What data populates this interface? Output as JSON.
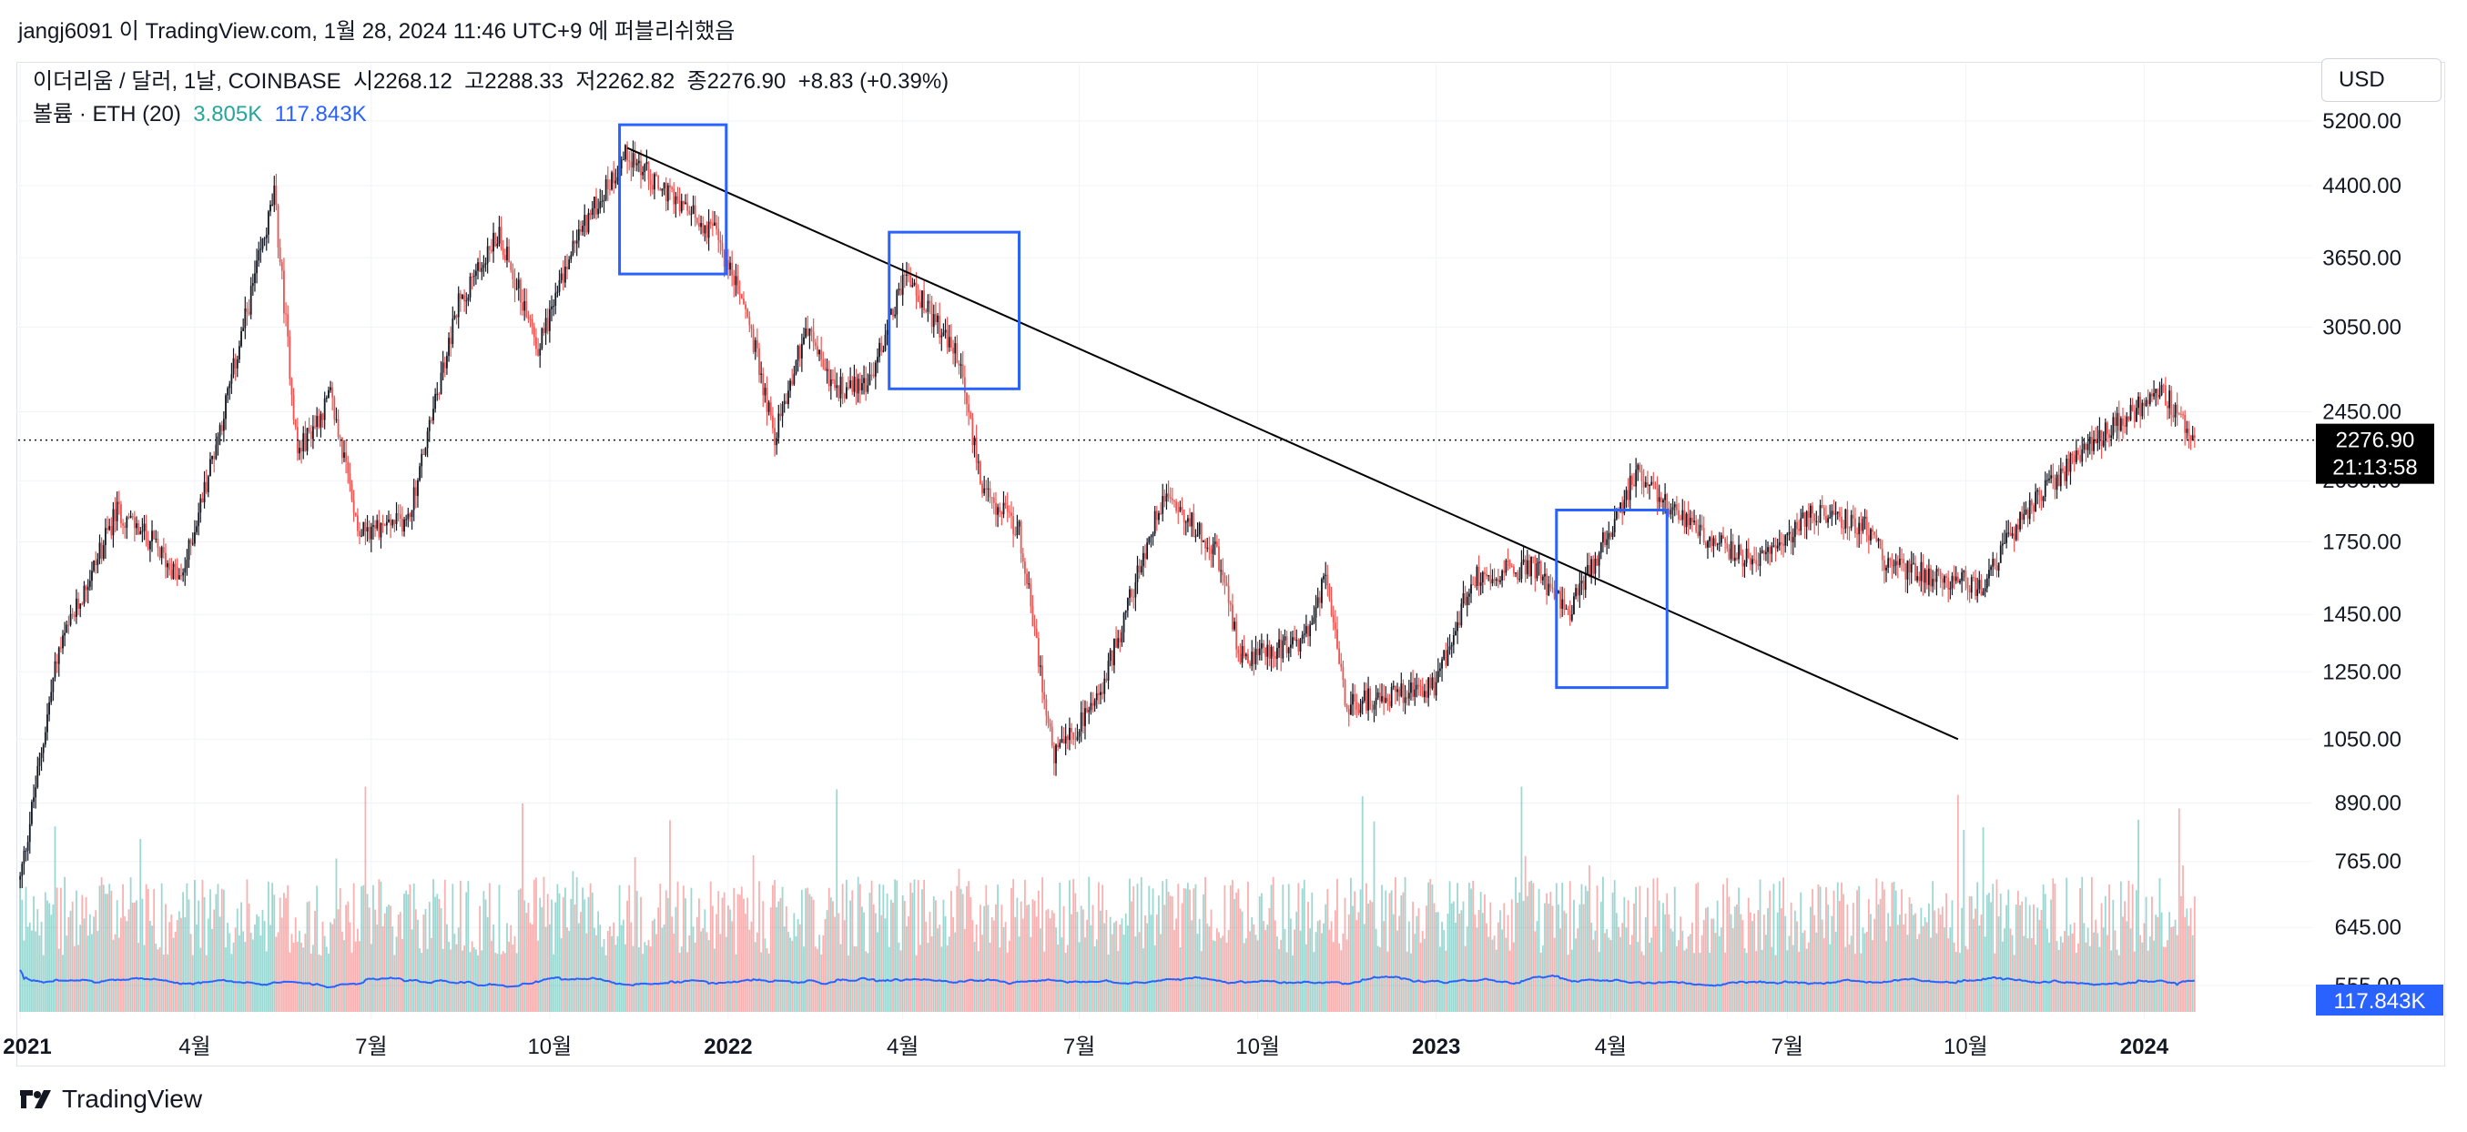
{
  "header": {
    "text": "jangj6091 이 TradingView.com, 1월 28, 2024 11:46 UTC+9 에 퍼블리쉬했음"
  },
  "legend": {
    "symbol": "이더리움 / 달러, 1날, COINBASE",
    "open": "시2268.12",
    "high": "고2288.33",
    "low": "저2262.82",
    "close": "종2276.90",
    "change": "+8.83 (+0.39%)",
    "volume_label": "볼륨 · ETH (20)",
    "volume_value": "3.805K",
    "volume_ma": "117.843K"
  },
  "currency": "USD",
  "footer": {
    "brand": "TradingView"
  },
  "colors": {
    "up": "#26a69a",
    "down": "#ef5350",
    "candle_body": "#131722",
    "ma": "#2962ff",
    "box": "#2962ff",
    "grid": "#f0f3fa"
  },
  "chart_data": {
    "type": "candlestick",
    "symbol": "ETH/USD",
    "scale": "log",
    "y_ticks": [
      "5200.00",
      "4400.00",
      "3650.00",
      "3050.00",
      "2450.00",
      "2050.00",
      "1750.00",
      "1450.00",
      "1250.00",
      "1050.00",
      "890.00",
      "765.00",
      "645.00",
      "555.00"
    ],
    "x_ticks": [
      "2021",
      "4월",
      "7월",
      "10월",
      "2022",
      "4월",
      "7월",
      "10월",
      "2023",
      "4월",
      "7월",
      "10월",
      "2024"
    ],
    "last_price": "2276.90",
    "countdown": "21:13:58",
    "volume_ma_badge": "117.843K",
    "price_path": [
      {
        "d": "2021-01-01",
        "p": 730
      },
      {
        "d": "2021-01-20",
        "p": 1300
      },
      {
        "d": "2021-02-20",
        "p": 1900
      },
      {
        "d": "2021-03-10",
        "p": 1750
      },
      {
        "d": "2021-03-25",
        "p": 1580
      },
      {
        "d": "2021-04-15",
        "p": 2400
      },
      {
        "d": "2021-05-12",
        "p": 4300
      },
      {
        "d": "2021-05-24",
        "p": 2200
      },
      {
        "d": "2021-06-10",
        "p": 2550
      },
      {
        "d": "2021-06-25",
        "p": 1800
      },
      {
        "d": "2021-07-20",
        "p": 1850
      },
      {
        "d": "2021-08-15",
        "p": 3250
      },
      {
        "d": "2021-09-05",
        "p": 3900
      },
      {
        "d": "2021-09-25",
        "p": 2900
      },
      {
        "d": "2021-10-15",
        "p": 3850
      },
      {
        "d": "2021-11-10",
        "p": 4800
      },
      {
        "d": "2021-12-05",
        "p": 4200
      },
      {
        "d": "2021-12-25",
        "p": 3900
      },
      {
        "d": "2022-01-10",
        "p": 3200
      },
      {
        "d": "2022-01-25",
        "p": 2300
      },
      {
        "d": "2022-02-10",
        "p": 3050
      },
      {
        "d": "2022-02-25",
        "p": 2600
      },
      {
        "d": "2022-03-15",
        "p": 2650
      },
      {
        "d": "2022-04-02",
        "p": 3500
      },
      {
        "d": "2022-04-30",
        "p": 2800
      },
      {
        "d": "2022-05-12",
        "p": 2000
      },
      {
        "d": "2022-05-31",
        "p": 1800
      },
      {
        "d": "2022-06-18",
        "p": 1000
      },
      {
        "d": "2022-07-10",
        "p": 1150
      },
      {
        "d": "2022-08-14",
        "p": 2000
      },
      {
        "d": "2022-09-10",
        "p": 1700
      },
      {
        "d": "2022-09-22",
        "p": 1300
      },
      {
        "d": "2022-10-25",
        "p": 1350
      },
      {
        "d": "2022-11-05",
        "p": 1600
      },
      {
        "d": "2022-11-15",
        "p": 1150
      },
      {
        "d": "2022-12-31",
        "p": 1200
      },
      {
        "d": "2023-01-20",
        "p": 1600
      },
      {
        "d": "2023-02-20",
        "p": 1650
      },
      {
        "d": "2023-03-10",
        "p": 1450
      },
      {
        "d": "2023-04-15",
        "p": 2100
      },
      {
        "d": "2023-05-15",
        "p": 1800
      },
      {
        "d": "2023-06-15",
        "p": 1650
      },
      {
        "d": "2023-07-15",
        "p": 1900
      },
      {
        "d": "2023-08-15",
        "p": 1800
      },
      {
        "d": "2023-08-20",
        "p": 1650
      },
      {
        "d": "2023-10-10",
        "p": 1560
      },
      {
        "d": "2023-10-25",
        "p": 1800
      },
      {
        "d": "2023-11-15",
        "p": 2050
      },
      {
        "d": "2023-12-10",
        "p": 2300
      },
      {
        "d": "2024-01-10",
        "p": 2600
      },
      {
        "d": "2024-01-27",
        "p": 2276.9
      }
    ],
    "trendline": [
      {
        "d": "2021-11-10",
        "p": 4850
      },
      {
        "d": "2023-09-27",
        "p": 1050
      }
    ],
    "boxes": [
      {
        "from": "2021-11-06",
        "to": "2021-12-31",
        "high": 5150,
        "low": 3500
      },
      {
        "from": "2022-03-25",
        "to": "2022-05-31",
        "high": 3900,
        "low": 2600
      },
      {
        "from": "2023-03-04",
        "to": "2023-04-30",
        "high": 1900,
        "low": 1200
      }
    ]
  }
}
